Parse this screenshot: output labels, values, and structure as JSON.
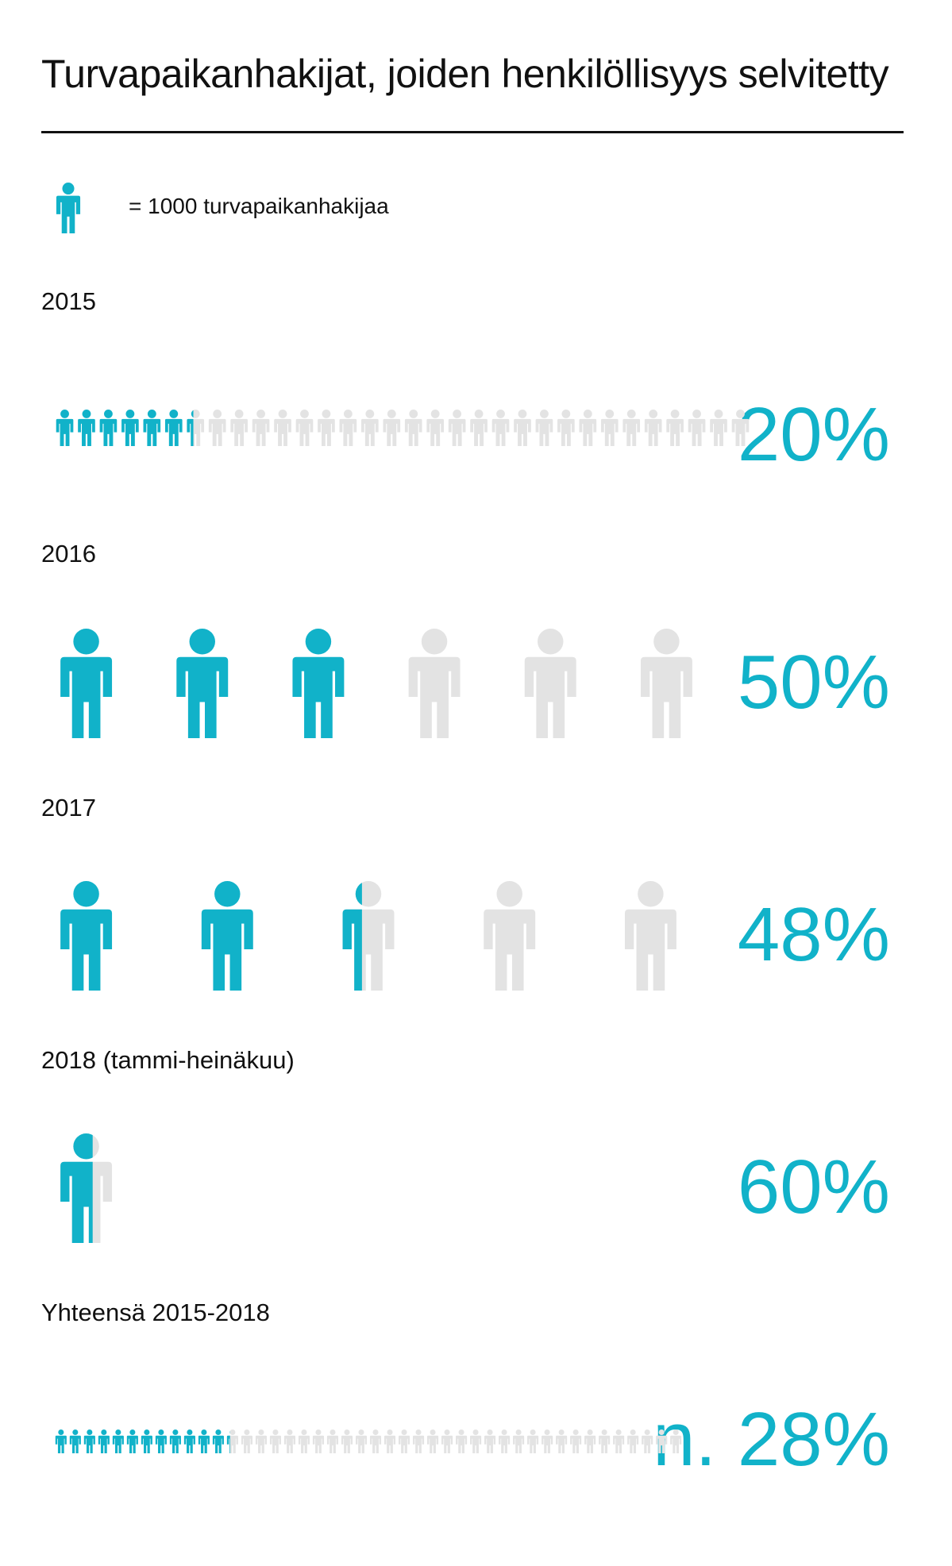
{
  "title": "Turvapaikanhakijat, joiden henkilöllisyys selvitetty",
  "legend": {
    "text": "= 1000 turvapaikanhakijaa",
    "icon": "person-icon"
  },
  "colors": {
    "filled": "#11b2c9",
    "empty": "#e3e3e3",
    "text": "#111111"
  },
  "chart_data": [
    {
      "type": "pictogram",
      "label": "2015",
      "unit_people": 1000,
      "icons": 32,
      "percent": 20,
      "percent_label": "20%"
    },
    {
      "type": "pictogram",
      "label": "2016",
      "unit_people": 1000,
      "icons": 6,
      "percent": 50,
      "percent_label": "50%"
    },
    {
      "type": "pictogram",
      "label": "2017",
      "unit_people": 1000,
      "icons": 5,
      "percent": 48,
      "percent_label": "48%"
    },
    {
      "type": "pictogram",
      "label": "2018 (tammi-heinäkuu)",
      "unit_people": 1000,
      "icons": 1,
      "percent": 60,
      "percent_label": "60%"
    },
    {
      "type": "pictogram",
      "label": "Yhteensä 2015-2018",
      "unit_people": 1000,
      "icons": 44,
      "percent": 28,
      "percent_label": "n. 28%"
    }
  ]
}
